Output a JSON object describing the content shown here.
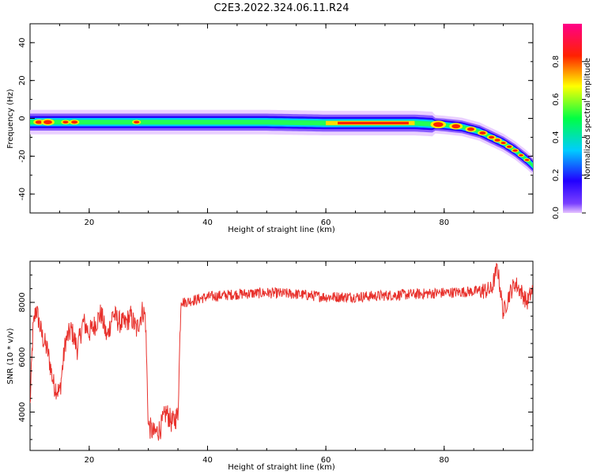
{
  "title": "C2E3.2022.324.06.11.R24",
  "chart_data": [
    {
      "type": "heatmap",
      "title": "C2E3.2022.324.06.11.R24",
      "xlabel": "Height of straight line (km)",
      "ylabel": "Frequency (Hz)",
      "xlim": [
        10,
        95
      ],
      "ylim": [
        -50,
        50
      ],
      "x_ticks": [
        20,
        40,
        60,
        80
      ],
      "y_ticks": [
        -40,
        -20,
        0,
        20,
        40
      ],
      "ridge": {
        "x": [
          10,
          15,
          20,
          25,
          30,
          35,
          40,
          50,
          60,
          70,
          75,
          78,
          80,
          83,
          86,
          88,
          90,
          92,
          94,
          95
        ],
        "y": [
          -2,
          -2,
          -2,
          -2,
          -2,
          -2,
          -2,
          -2,
          -2.5,
          -2.5,
          -2.5,
          -3,
          -3.5,
          -4.5,
          -7,
          -10,
          -13,
          -17,
          -22,
          -25
        ]
      },
      "colorbar": {
        "label": "Normalized spectral amplitude",
        "range": [
          0,
          1
        ],
        "ticks": [
          "0.0",
          "0.2",
          "0.4",
          "0.6",
          "0.8"
        ],
        "colors": [
          "#e6c4ff",
          "#2200ff",
          "#00ccff",
          "#00ff44",
          "#ffff00",
          "#ff2200",
          "#ff0088"
        ]
      },
      "grid": false
    },
    {
      "type": "line",
      "xlabel": "Height of straight line (km)",
      "ylabel": "SNR (10 * v/v)",
      "xlim": [
        10,
        95
      ],
      "ylim": [
        2600,
        9500
      ],
      "x_ticks": [
        20,
        40,
        60,
        80
      ],
      "y_ticks": [
        4000,
        6000,
        8000
      ],
      "line_color": "#e8312c",
      "series": [
        {
          "x": [
            10,
            10.5,
            11,
            12,
            13,
            14,
            15,
            16,
            17,
            18,
            19,
            20,
            21,
            22,
            23,
            24,
            25,
            26,
            27,
            28,
            29,
            29.5,
            30,
            31,
            32,
            33,
            34,
            35,
            35.5,
            36,
            38,
            40,
            45,
            50,
            55,
            60,
            65,
            70,
            75,
            80,
            85,
            88,
            89,
            90,
            91,
            92,
            93,
            94,
            95
          ],
          "y": [
            4200,
            7000,
            7800,
            6800,
            6200,
            5000,
            4700,
            6600,
            7000,
            6300,
            7300,
            6900,
            7200,
            7600,
            6700,
            7600,
            7300,
            7200,
            7500,
            7000,
            7700,
            7500,
            3500,
            3200,
            3400,
            4000,
            3600,
            3900,
            8100,
            8000,
            8100,
            8200,
            8300,
            8350,
            8300,
            8200,
            8200,
            8250,
            8300,
            8350,
            8400,
            8450,
            9300,
            7600,
            8300,
            8700,
            8400,
            8000,
            8500
          ]
        }
      ],
      "grid": false
    }
  ]
}
